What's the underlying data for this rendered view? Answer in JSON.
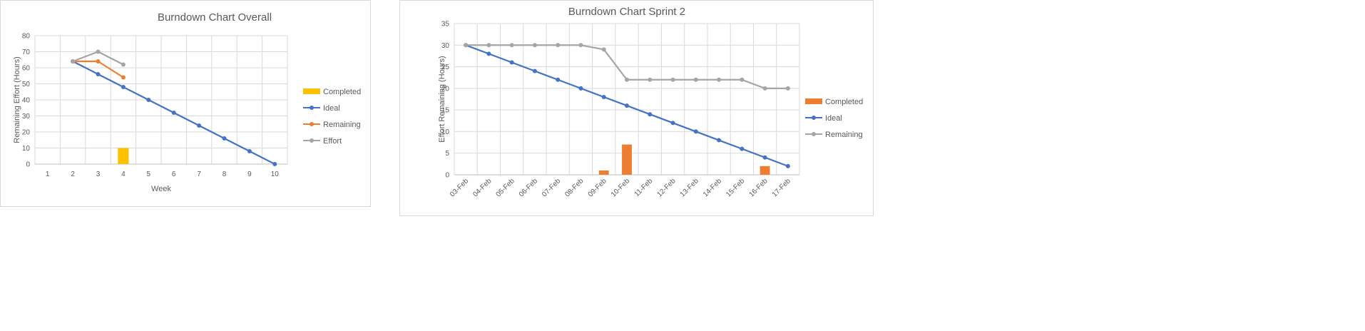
{
  "chart_data": [
    {
      "type": "bar+line",
      "title": "Burndown Chart Overall",
      "xlabel": "Week",
      "ylabel": "Remaining Effort (Hours)",
      "categories": [
        "1",
        "2",
        "3",
        "4",
        "5",
        "6",
        "7",
        "8",
        "9",
        "10"
      ],
      "ylim": [
        0,
        80
      ],
      "yticks": [
        0,
        10,
        20,
        30,
        40,
        50,
        60,
        70,
        80
      ],
      "grid": true,
      "legend_position": "right",
      "series": [
        {
          "name": "Completed",
          "kind": "bar",
          "color": "#ffc000",
          "values": [
            null,
            null,
            null,
            10,
            null,
            null,
            null,
            null,
            null,
            null
          ]
        },
        {
          "name": "Ideal",
          "kind": "line",
          "color": "#4472c4",
          "values": [
            null,
            64,
            56,
            48,
            40,
            32,
            24,
            16,
            8,
            0
          ]
        },
        {
          "name": "Remaining",
          "kind": "line",
          "color": "#ed7d31",
          "values": [
            null,
            64,
            64,
            54,
            null,
            null,
            null,
            null,
            null,
            null
          ]
        },
        {
          "name": "Effort",
          "kind": "line",
          "color": "#a5a5a5",
          "values": [
            null,
            64,
            70,
            62,
            null,
            null,
            null,
            null,
            null,
            null
          ]
        }
      ]
    },
    {
      "type": "bar+line",
      "title": "Burndown Chart Sprint 2",
      "xlabel": "",
      "ylabel": "Effort Remaining (Hours)",
      "categories": [
        "03-Feb",
        "04-Feb",
        "05-Feb",
        "06-Feb",
        "07-Feb",
        "08-Feb",
        "09-Feb",
        "10-Feb",
        "11-Feb",
        "12-Feb",
        "13-Feb",
        "14-Feb",
        "15-Feb",
        "16-Feb",
        "17-Feb"
      ],
      "ylim": [
        0,
        35
      ],
      "yticks": [
        0,
        5,
        10,
        15,
        20,
        25,
        30,
        35
      ],
      "grid": true,
      "legend_position": "right",
      "series": [
        {
          "name": "Completed",
          "kind": "bar",
          "color": "#ed7d31",
          "values": [
            null,
            null,
            null,
            null,
            null,
            null,
            1,
            7,
            null,
            null,
            null,
            null,
            null,
            2,
            null
          ]
        },
        {
          "name": "Ideal",
          "kind": "line",
          "color": "#4472c4",
          "values": [
            30,
            28,
            26,
            24,
            22,
            20,
            18,
            16,
            14,
            12,
            10,
            8,
            6,
            4,
            2
          ]
        },
        {
          "name": "Remaining",
          "kind": "line",
          "color": "#a5a5a5",
          "values": [
            30,
            30,
            30,
            30,
            30,
            30,
            29,
            22,
            22,
            22,
            22,
            22,
            22,
            20,
            20
          ]
        }
      ]
    }
  ]
}
